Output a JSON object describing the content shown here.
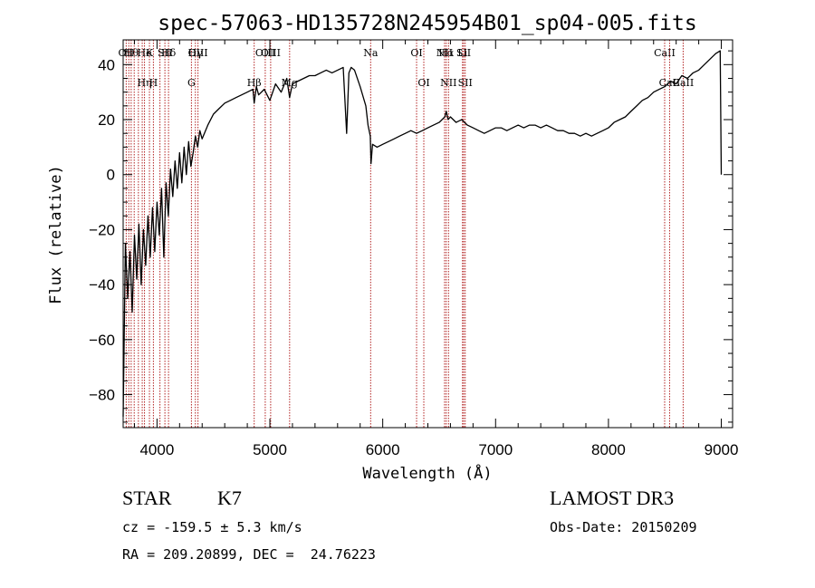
{
  "title": "spec-57063-HD135728N245954B01_sp04-005.fits",
  "footer": {
    "class_label": "STAR",
    "subclass": "K7",
    "redshift": "cz = -159.5 ± 5.3 km/s",
    "coords": "RA = 209.20899, DEC =  24.76223",
    "survey": "LAMOST DR3",
    "obs_date": "Obs-Date: 20150209"
  },
  "chart_data": {
    "type": "line",
    "xlabel": "Wavelength (Å)",
    "ylabel": "Flux (relative)",
    "xlim": [
      3700,
      9100
    ],
    "ylim": [
      -92,
      49
    ],
    "xticks": [
      4000,
      5000,
      6000,
      7000,
      8000,
      9000
    ],
    "yticks": [
      -80,
      -60,
      -40,
      -20,
      0,
      20,
      40
    ],
    "grid": false,
    "line_color": "#000000",
    "marker_color": "#b22222",
    "series": [
      {
        "x": [
          3700,
          3720,
          3740,
          3760,
          3780,
          3800,
          3820,
          3840,
          3860,
          3880,
          3900,
          3920,
          3940,
          3960,
          3980,
          4000,
          4020,
          4040,
          4060,
          4080,
          4100,
          4120,
          4140,
          4160,
          4180,
          4200,
          4220,
          4240,
          4260,
          4280,
          4300,
          4320,
          4340,
          4360,
          4380,
          4400,
          4450,
          4500,
          4550,
          4600,
          4650,
          4700,
          4750,
          4800,
          4850,
          4861,
          4880,
          4900,
          4950,
          5000,
          5050,
          5100,
          5150,
          5175,
          5200,
          5250,
          5300,
          5350,
          5400,
          5450,
          5500,
          5550,
          5600,
          5650,
          5680,
          5700,
          5720,
          5750,
          5800,
          5850,
          5870,
          5890,
          5896,
          5910,
          5950,
          6000,
          6050,
          6100,
          6150,
          6200,
          6250,
          6300,
          6350,
          6400,
          6450,
          6500,
          6550,
          6563,
          6580,
          6600,
          6650,
          6700,
          6750,
          6800,
          6850,
          6900,
          6950,
          7000,
          7050,
          7100,
          7150,
          7200,
          7250,
          7300,
          7350,
          7400,
          7450,
          7500,
          7550,
          7600,
          7650,
          7700,
          7750,
          7800,
          7850,
          7900,
          7950,
          8000,
          8050,
          8100,
          8150,
          8200,
          8250,
          8300,
          8350,
          8400,
          8450,
          8500,
          8550,
          8600,
          8650,
          8700,
          8750,
          8800,
          8850,
          8900,
          8950,
          8990,
          9000
        ],
        "y": [
          -88,
          -25,
          -45,
          -28,
          -50,
          -22,
          -38,
          -18,
          -40,
          -20,
          -33,
          -15,
          -30,
          -12,
          -28,
          -10,
          -22,
          -5,
          -30,
          -3,
          -15,
          2,
          -8,
          5,
          -5,
          8,
          -3,
          10,
          0,
          12,
          3,
          8,
          14,
          10,
          16,
          13,
          18,
          22,
          24,
          26,
          27,
          28,
          29,
          30,
          31,
          26,
          32,
          29,
          31,
          27,
          33,
          30,
          35,
          28,
          33,
          34,
          35,
          36,
          36,
          37,
          38,
          37,
          38,
          39,
          15,
          37,
          39,
          38,
          32,
          25,
          18,
          14,
          4,
          11,
          10,
          11,
          12,
          13,
          14,
          15,
          16,
          15,
          16,
          17,
          18,
          19,
          21,
          23,
          20,
          21,
          19,
          20,
          18,
          17,
          16,
          15,
          16,
          17,
          17,
          16,
          17,
          18,
          17,
          18,
          18,
          17,
          18,
          17,
          16,
          16,
          15,
          15,
          14,
          15,
          14,
          15,
          16,
          17,
          19,
          20,
          21,
          23,
          25,
          27,
          28,
          30,
          31,
          32,
          34,
          33,
          36,
          35,
          37,
          38,
          40,
          42,
          44,
          45,
          0
        ]
      }
    ],
    "spectral_lines": [
      {
        "x": 3727,
        "top": "OII",
        "bottom": ""
      },
      {
        "x": 3750,
        "top": "",
        "bottom": ""
      },
      {
        "x": 3771,
        "top": "Hθ",
        "bottom": ""
      },
      {
        "x": 3798,
        "top": "",
        "bottom": ""
      },
      {
        "x": 3835,
        "top": "",
        "bottom": ""
      },
      {
        "x": 3869,
        "top": "",
        "bottom": ""
      },
      {
        "x": 3889,
        "top": "He",
        "bottom": "Hη"
      },
      {
        "x": 3933,
        "top": "K",
        "bottom": ""
      },
      {
        "x": 3968,
        "top": "",
        "bottom": "H"
      },
      {
        "x": 4026,
        "top": "",
        "bottom": ""
      },
      {
        "x": 4070,
        "top": "SII",
        "bottom": ""
      },
      {
        "x": 4102,
        "top": "Hδ",
        "bottom": ""
      },
      {
        "x": 4305,
        "top": "",
        "bottom": "G"
      },
      {
        "x": 4340,
        "top": "Hγ",
        "bottom": ""
      },
      {
        "x": 4363,
        "top": "OIII",
        "bottom": ""
      },
      {
        "x": 4861,
        "top": "",
        "bottom": "Hβ"
      },
      {
        "x": 4959,
        "top": "OIII",
        "bottom": ""
      },
      {
        "x": 5007,
        "top": "OIII",
        "bottom": ""
      },
      {
        "x": 5175,
        "top": "",
        "bottom": "Mg"
      },
      {
        "x": 5893,
        "top": "Na",
        "bottom": ""
      },
      {
        "x": 6300,
        "top": "OI",
        "bottom": ""
      },
      {
        "x": 6364,
        "top": "",
        "bottom": "OI"
      },
      {
        "x": 6548,
        "top": "NII",
        "bottom": ""
      },
      {
        "x": 6563,
        "top": "Hα",
        "bottom": ""
      },
      {
        "x": 6583,
        "top": "",
        "bottom": "NII"
      },
      {
        "x": 6707,
        "top": "Li",
        "bottom": ""
      },
      {
        "x": 6717,
        "top": "SII",
        "bottom": ""
      },
      {
        "x": 6731,
        "top": "",
        "bottom": "SII"
      },
      {
        "x": 8498,
        "top": "CaII",
        "bottom": ""
      },
      {
        "x": 8542,
        "top": "",
        "bottom": "CaII"
      },
      {
        "x": 8662,
        "top": "",
        "bottom": "CaII"
      }
    ]
  }
}
